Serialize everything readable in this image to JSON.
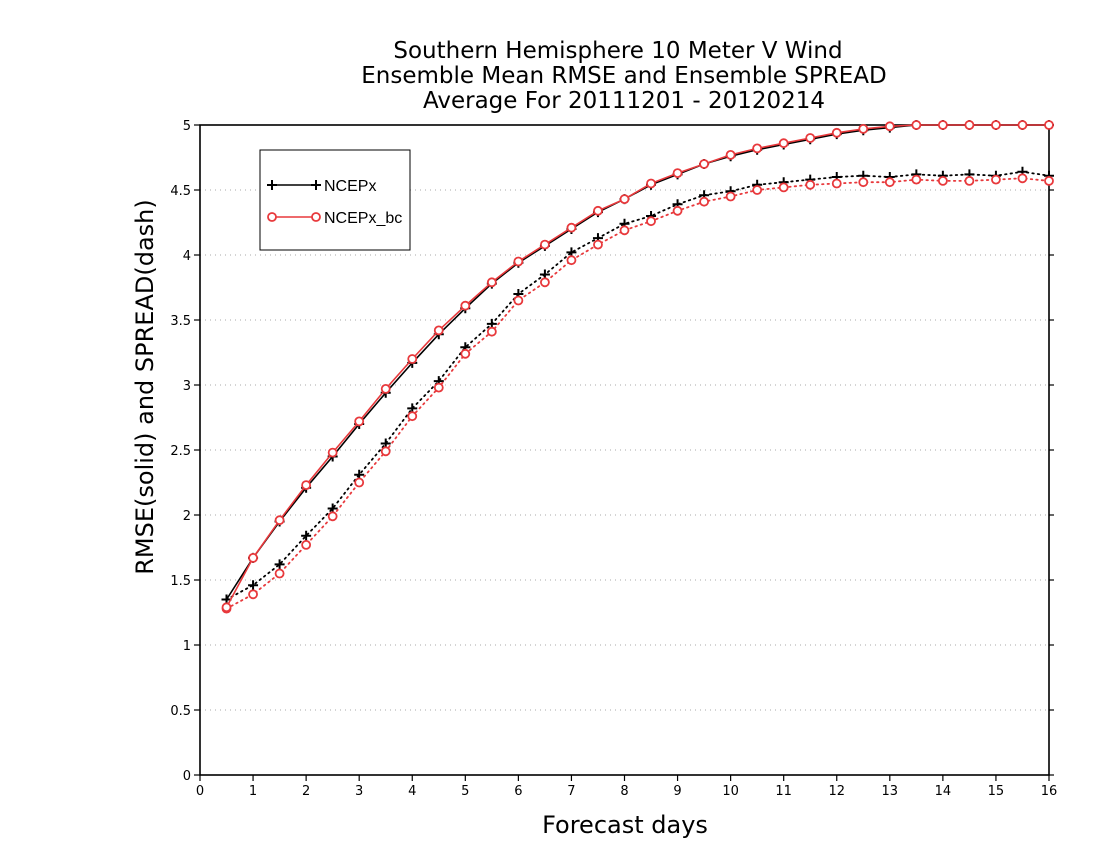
{
  "chart_data": {
    "type": "line",
    "title": [
      "Southern Hemisphere 10 Meter V Wind",
      "Ensemble Mean RMSE and Ensemble SPREAD",
      "Average For 20111201 - 20120214"
    ],
    "xlabel": "Forecast days",
    "ylabel": "RMSE(solid) and SPREAD(dash)",
    "xlim": [
      0,
      16
    ],
    "ylim": [
      0,
      5
    ],
    "xticks": [
      0,
      1,
      2,
      3,
      4,
      5,
      6,
      7,
      8,
      9,
      10,
      11,
      12,
      13,
      14,
      15,
      16
    ],
    "yticks": [
      0,
      0.5,
      1,
      1.5,
      2,
      2.5,
      3,
      3.5,
      4,
      4.5,
      5
    ],
    "ytick_labels": [
      "0",
      "0.5",
      "1",
      "1.5",
      "2",
      "2.5",
      "3",
      "3.5",
      "4",
      "4.5",
      "5"
    ],
    "grid": "horizontal dotted",
    "legend_position": "top-left",
    "x": [
      0.5,
      1,
      1.5,
      2,
      2.5,
      3,
      3.5,
      4,
      4.5,
      5,
      5.5,
      6,
      6.5,
      7,
      7.5,
      8,
      8.5,
      9,
      9.5,
      10,
      10.5,
      11,
      11.5,
      12,
      12.5,
      13,
      13.5,
      14,
      14.5,
      15,
      15.5,
      16
    ],
    "series": [
      {
        "name": "NCEPx",
        "metric": "RMSE",
        "style": "solid",
        "marker": "plus",
        "color": "#000000",
        "values": [
          1.35,
          1.67,
          1.95,
          2.21,
          2.45,
          2.7,
          2.94,
          3.17,
          3.39,
          3.59,
          3.78,
          3.94,
          4.07,
          4.2,
          4.33,
          4.43,
          4.54,
          4.62,
          4.7,
          4.76,
          4.81,
          4.85,
          4.89,
          4.93,
          4.96,
          4.98,
          5.0,
          5.0,
          5.0,
          5.0,
          5.0,
          5.0
        ]
      },
      {
        "name": "NCEPx_bc",
        "metric": "RMSE",
        "style": "solid",
        "marker": "circle",
        "color": "#e8393c",
        "values": [
          1.29,
          1.67,
          1.96,
          2.23,
          2.48,
          2.72,
          2.97,
          3.2,
          3.42,
          3.61,
          3.79,
          3.95,
          4.08,
          4.21,
          4.34,
          4.43,
          4.55,
          4.63,
          4.7,
          4.77,
          4.82,
          4.86,
          4.9,
          4.94,
          4.97,
          4.99,
          5.0,
          5.0,
          5.0,
          5.0,
          5.0,
          5.0
        ]
      },
      {
        "name": "NCEPx",
        "metric": "SPREAD",
        "style": "dotted",
        "marker": "plus",
        "color": "#000000",
        "values": [
          1.35,
          1.46,
          1.62,
          1.84,
          2.05,
          2.31,
          2.55,
          2.82,
          3.03,
          3.29,
          3.47,
          3.7,
          3.85,
          4.02,
          4.13,
          4.24,
          4.3,
          4.39,
          4.46,
          4.49,
          4.54,
          4.56,
          4.58,
          4.6,
          4.61,
          4.6,
          4.62,
          4.61,
          4.62,
          4.61,
          4.64,
          4.61
        ]
      },
      {
        "name": "NCEPx_bc",
        "metric": "SPREAD",
        "style": "dotted",
        "marker": "circle",
        "color": "#e8393c",
        "values": [
          1.28,
          1.39,
          1.55,
          1.77,
          1.99,
          2.25,
          2.49,
          2.76,
          2.98,
          3.24,
          3.41,
          3.65,
          3.79,
          3.96,
          4.08,
          4.19,
          4.26,
          4.34,
          4.41,
          4.45,
          4.5,
          4.52,
          4.54,
          4.55,
          4.56,
          4.56,
          4.58,
          4.57,
          4.57,
          4.58,
          4.59,
          4.57
        ]
      }
    ],
    "legend": [
      {
        "label": "NCEPx",
        "marker": "plus",
        "color": "#000000"
      },
      {
        "label": "NCEPx_bc",
        "marker": "circle",
        "color": "#e8393c"
      }
    ]
  }
}
